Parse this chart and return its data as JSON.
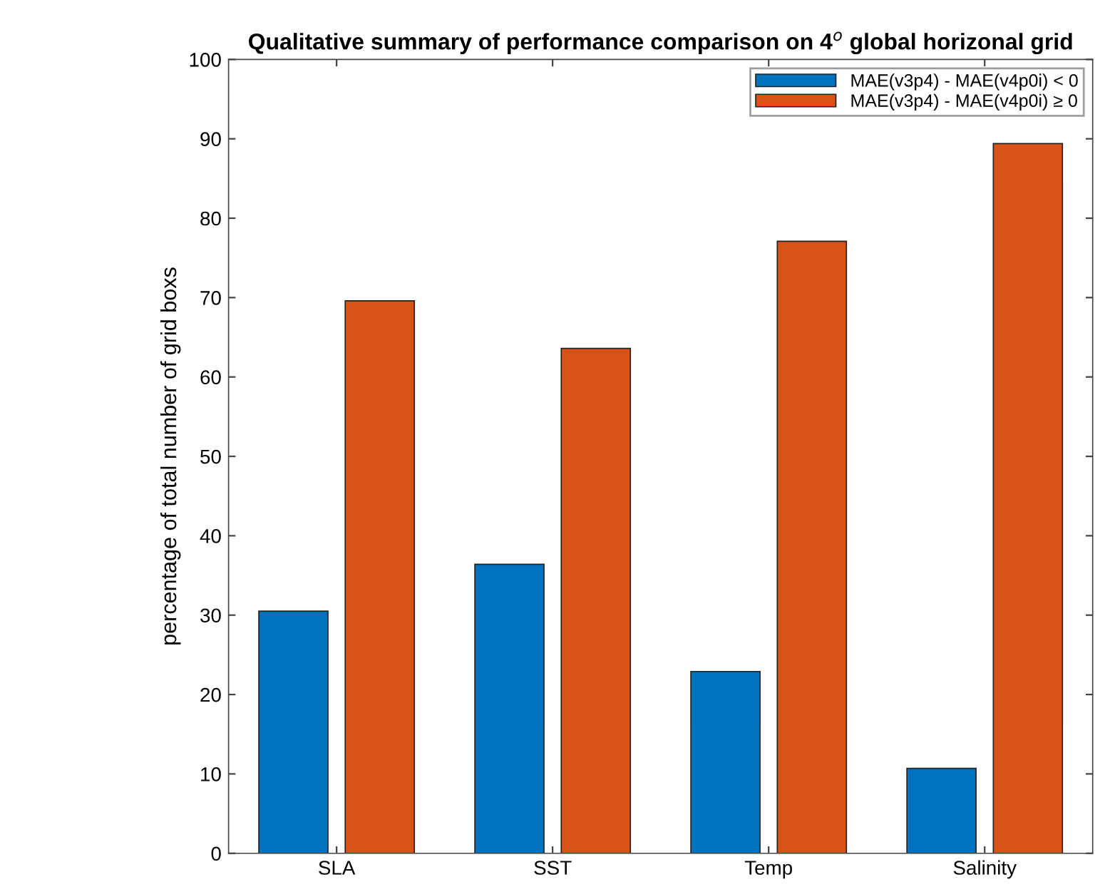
{
  "chart_data": {
    "type": "bar",
    "title": "Qualitative summary of performance comparison on 4$^{o}$ global horizonal grid",
    "ylabel": "percentage of total number of grid boxs",
    "categories": [
      "SLA",
      "SST",
      "Temp",
      "Salinity"
    ],
    "series": [
      {
        "name": "MAE(v3p4) - MAE(v4p0i) < 0",
        "color": "#0072bd",
        "values": [
          30.5,
          36.4,
          22.9,
          10.7
        ]
      },
      {
        "name": "MAE(v3p4) - MAE(v4p0i) ≥ 0",
        "color": "#d95319",
        "values": [
          69.6,
          63.6,
          77.1,
          89.4
        ]
      }
    ],
    "ylim": [
      0,
      100
    ],
    "yticks": [
      0,
      10,
      20,
      30,
      40,
      50,
      60,
      70,
      80,
      90,
      100
    ],
    "grid": false,
    "legend": "top right"
  }
}
